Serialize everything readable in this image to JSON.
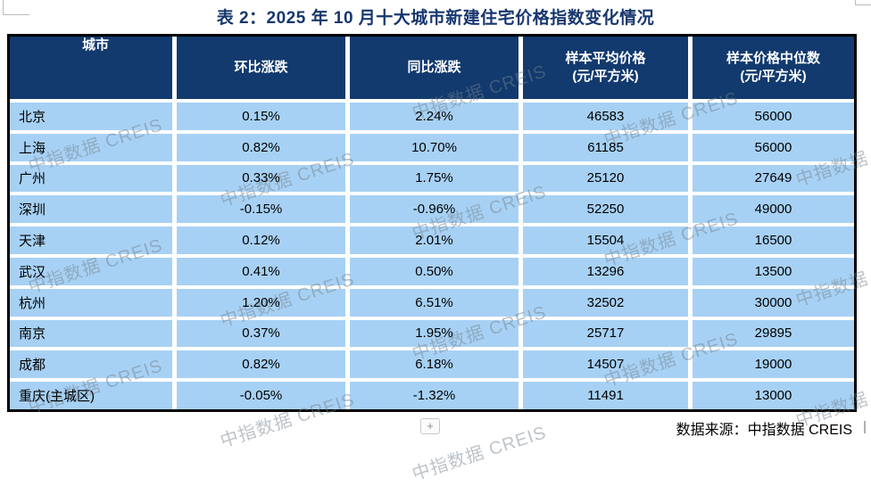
{
  "title": "表 2：2025 年 10 月十大城市新建住宅价格指数变化情况",
  "table": {
    "columns": [
      {
        "label": "城市",
        "unit": ""
      },
      {
        "label": "环比涨跌",
        "unit": ""
      },
      {
        "label": "同比涨跌",
        "unit": ""
      },
      {
        "label": "样本平均价格",
        "unit": "(元/平方米)"
      },
      {
        "label": "样本价格中位数",
        "unit": "(元/平方米)"
      }
    ],
    "rows": [
      {
        "city": "北京",
        "mom": "0.15%",
        "yoy": "2.24%",
        "avg": "46583",
        "median": "56000"
      },
      {
        "city": "上海",
        "mom": "0.82%",
        "yoy": "10.70%",
        "avg": "61185",
        "median": "56000"
      },
      {
        "city": "广州",
        "mom": "0.33%",
        "yoy": "1.75%",
        "avg": "25120",
        "median": "27649"
      },
      {
        "city": "深圳",
        "mom": "-0.15%",
        "yoy": "-0.96%",
        "avg": "52250",
        "median": "49000"
      },
      {
        "city": "天津",
        "mom": "0.12%",
        "yoy": "2.01%",
        "avg": "15504",
        "median": "16500"
      },
      {
        "city": "武汉",
        "mom": "0.41%",
        "yoy": "0.50%",
        "avg": "13296",
        "median": "13500"
      },
      {
        "city": "杭州",
        "mom": "1.20%",
        "yoy": "6.51%",
        "avg": "32502",
        "median": "30000"
      },
      {
        "city": "南京",
        "mom": "0.37%",
        "yoy": "1.95%",
        "avg": "25717",
        "median": "29895"
      },
      {
        "city": "成都",
        "mom": "0.82%",
        "yoy": "6.18%",
        "avg": "14507",
        "median": "19000"
      },
      {
        "city": "重庆(主城区)",
        "mom": "-0.05%",
        "yoy": "-1.32%",
        "avg": "11491",
        "median": "13000"
      }
    ]
  },
  "footer": {
    "source_text": "数据来源：中指数据 CREIS",
    "plus_button_label": "+"
  },
  "watermark": {
    "text": "中指数据 CREIS"
  },
  "colors": {
    "header_bg": "#123a6e",
    "row_bg": "#a7d1f4",
    "title_color": "#17376e",
    "border_color": "#000000"
  }
}
